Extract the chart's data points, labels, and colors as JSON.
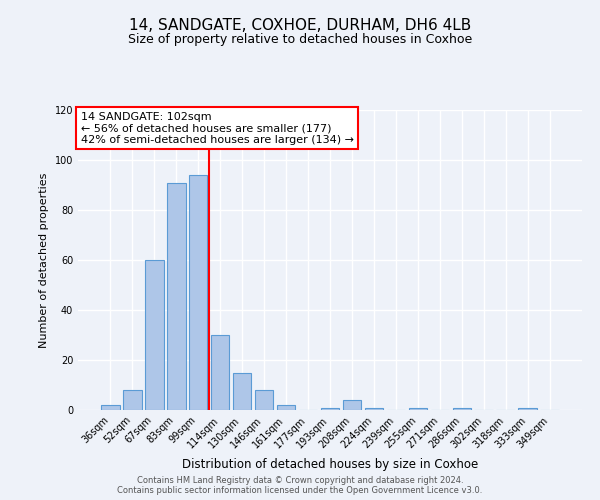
{
  "title": "14, SANDGATE, COXHOE, DURHAM, DH6 4LB",
  "subtitle": "Size of property relative to detached houses in Coxhoe",
  "xlabel": "Distribution of detached houses by size in Coxhoe",
  "ylabel": "Number of detached properties",
  "bar_labels": [
    "36sqm",
    "52sqm",
    "67sqm",
    "83sqm",
    "99sqm",
    "114sqm",
    "130sqm",
    "146sqm",
    "161sqm",
    "177sqm",
    "193sqm",
    "208sqm",
    "224sqm",
    "239sqm",
    "255sqm",
    "271sqm",
    "286sqm",
    "302sqm",
    "318sqm",
    "333sqm",
    "349sqm"
  ],
  "bar_heights": [
    2,
    8,
    60,
    91,
    94,
    30,
    15,
    8,
    2,
    0,
    1,
    4,
    1,
    0,
    1,
    0,
    1,
    0,
    0,
    1,
    0
  ],
  "bar_color": "#aec6e8",
  "bar_edgecolor": "#5b9bd5",
  "vline_x": 4.5,
  "vline_color": "red",
  "annotation_text": "14 SANDGATE: 102sqm\n← 56% of detached houses are smaller (177)\n42% of semi-detached houses are larger (134) →",
  "annotation_box_color": "#ffffff",
  "annotation_box_edgecolor": "red",
  "ylim": [
    0,
    120
  ],
  "yticks": [
    0,
    20,
    40,
    60,
    80,
    100,
    120
  ],
  "background_color": "#eef2f9",
  "grid_color": "#ffffff",
  "footer_line1": "Contains HM Land Registry data © Crown copyright and database right 2024.",
  "footer_line2": "Contains public sector information licensed under the Open Government Licence v3.0."
}
